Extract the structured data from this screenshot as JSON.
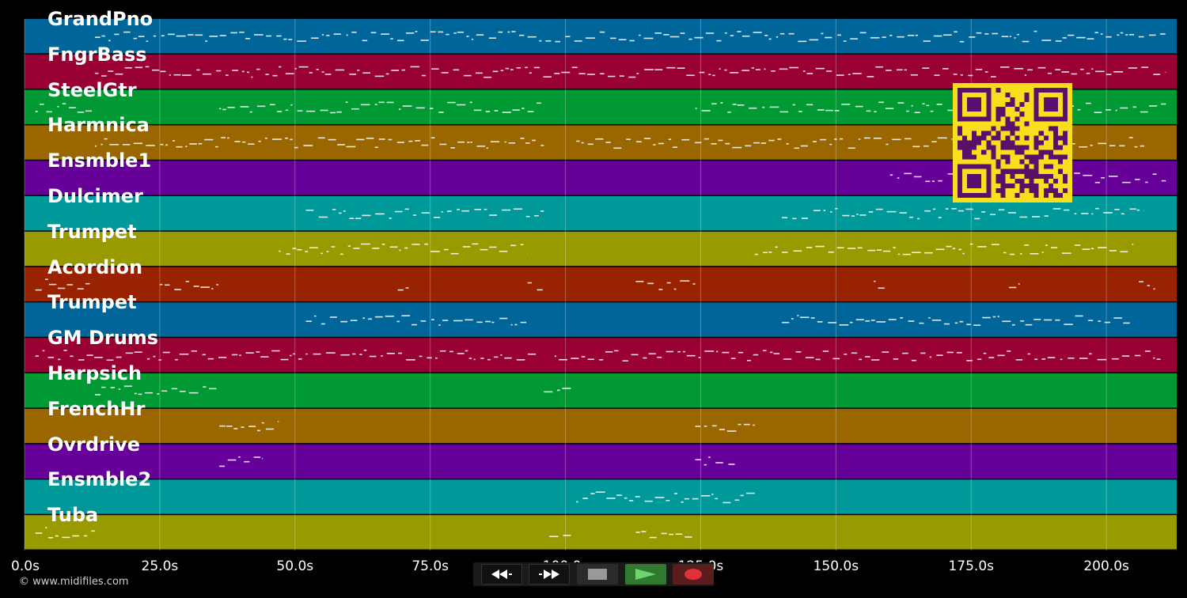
{
  "app": {
    "copyright": "© www.midifiles.com"
  },
  "timeline": {
    "axis_min": 0,
    "axis_max": 213,
    "tick_values": [
      0,
      25,
      50,
      75,
      100,
      125,
      150,
      175,
      200
    ],
    "tick_labels": [
      "0.0s",
      "25.0s",
      "50.0s",
      "75.0s",
      "100.0s",
      "125.0s",
      "150.0s",
      "175.0s",
      "200.0s"
    ]
  },
  "tracks": [
    {
      "name": "GrandPno",
      "color": "#006699"
    },
    {
      "name": "FngrBass",
      "color": "#990033"
    },
    {
      "name": "SteelGtr",
      "color": "#009933"
    },
    {
      "name": "Harmnica",
      "color": "#996600"
    },
    {
      "name": "Ensmble1",
      "color": "#660099"
    },
    {
      "name": "Dulcimer",
      "color": "#009999"
    },
    {
      "name": "Trumpet",
      "color": "#999900"
    },
    {
      "name": "Acordion",
      "color": "#992200"
    },
    {
      "name": "Trumpet",
      "color": "#006699"
    },
    {
      "name": "GM Drums",
      "color": "#990033"
    },
    {
      "name": "Harpsich",
      "color": "#009933"
    },
    {
      "name": "FrenchHr",
      "color": "#996600"
    },
    {
      "name": "Ovrdrive",
      "color": "#660099"
    },
    {
      "name": "Ensmble2",
      "color": "#009999"
    },
    {
      "name": "Tuba",
      "color": "#999900"
    }
  ],
  "note_spans": [
    [
      [
        13,
        211
      ]
    ],
    [
      [
        13,
        211
      ]
    ],
    [
      [
        2,
        13
      ],
      [
        36,
        96
      ],
      [
        124,
        184
      ],
      [
        188,
        211
      ]
    ],
    [
      [
        13,
        96
      ],
      [
        102,
        207
      ]
    ],
    [
      [
        160,
        211
      ]
    ],
    [
      [
        52,
        96
      ],
      [
        140,
        207
      ]
    ],
    [
      [
        47,
        93
      ],
      [
        135,
        205
      ]
    ],
    [
      [
        2,
        13
      ],
      [
        25,
        36
      ],
      [
        69,
        71
      ],
      [
        93,
        96
      ],
      [
        113,
        124
      ],
      [
        157,
        159
      ],
      [
        182,
        184
      ],
      [
        206,
        209
      ]
    ],
    [
      [
        52,
        93
      ],
      [
        140,
        205
      ]
    ],
    [
      [
        2,
        95
      ],
      [
        98,
        210
      ]
    ],
    [
      [
        13,
        36
      ],
      [
        96,
        101
      ]
    ],
    [
      [
        36,
        47
      ],
      [
        124,
        135
      ]
    ],
    [
      [
        36,
        44
      ],
      [
        124,
        132
      ]
    ],
    [
      [
        102,
        135
      ]
    ],
    [
      [
        2,
        13
      ],
      [
        97,
        101
      ],
      [
        113,
        124
      ]
    ]
  ],
  "controls": [
    {
      "name": "rewind-button",
      "icon": "rewind-icon"
    },
    {
      "name": "fast-forward-button",
      "icon": "fast-forward-icon"
    },
    {
      "name": "stop-button",
      "icon": "stop-icon"
    },
    {
      "name": "play-button",
      "icon": "play-icon"
    },
    {
      "name": "record-button",
      "icon": "record-icon"
    }
  ],
  "colors": {
    "background": "#000000",
    "qr_foreground": "#5a0f6b",
    "qr_background": "#f7df1e",
    "play_button": "#2f7a2f",
    "record_button": "#5a1d1d",
    "record_dot": "#e0303a"
  }
}
